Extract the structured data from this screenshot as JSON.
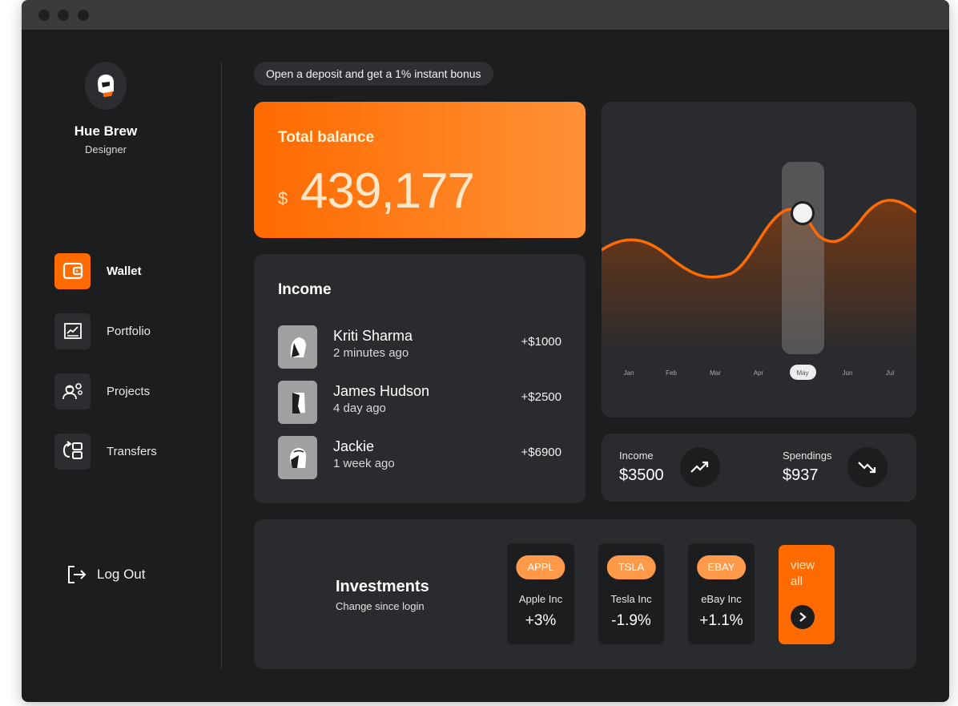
{
  "user": {
    "name": "Hue Brew",
    "role": "Designer"
  },
  "nav": {
    "items": [
      {
        "label": "Wallet",
        "icon": "wallet-icon",
        "active": true
      },
      {
        "label": "Portfolio",
        "icon": "chart-line-icon",
        "active": false
      },
      {
        "label": "Projects",
        "icon": "worker-gear-icon",
        "active": false
      },
      {
        "label": "Transfers",
        "icon": "transfer-icon",
        "active": false
      }
    ],
    "logout": "Log Out"
  },
  "promo": "Open a deposit and get a 1% instant bonus",
  "balance": {
    "title": "Total balance",
    "currency": "$",
    "amount": "439,177"
  },
  "income": {
    "title": "Income",
    "rows": [
      {
        "name": "Kriti Sharma",
        "time": "2 minutes ago",
        "amount": "+$1000"
      },
      {
        "name": "James Hudson",
        "time": "4 day ago",
        "amount": "+$2500"
      },
      {
        "name": "Jackie",
        "time": "1 week ago",
        "amount": "+$6900"
      }
    ]
  },
  "chart": {
    "months": [
      "Jan",
      "Feb",
      "Mar",
      "Apr",
      "May",
      "Jun",
      "Jul"
    ],
    "selected": "May"
  },
  "stats": {
    "income_label": "Income",
    "income_value": "$3500",
    "spend_label": "Spendings",
    "spend_value": "$937"
  },
  "investments": {
    "title": "Investments",
    "subtitle": "Change since login",
    "tiles": [
      {
        "ticker": "APPL",
        "name": "Apple Inc",
        "change": "+3%"
      },
      {
        "ticker": "TSLA",
        "name": "Tesla Inc",
        "change": "-1.9%"
      },
      {
        "ticker": "EBAY",
        "name": "eBay Inc",
        "change": "+1.1%"
      }
    ],
    "view_all": "view all"
  },
  "colors": {
    "accent": "#ff6b00",
    "background": "#1c1d1f",
    "card": "#2a2b2e"
  }
}
